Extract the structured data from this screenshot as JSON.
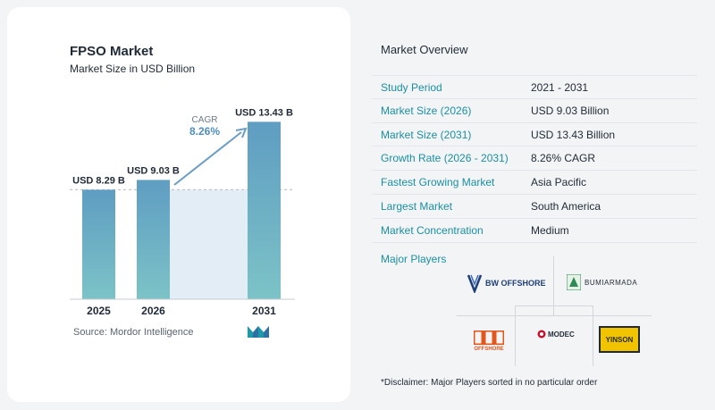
{
  "chart_data": {
    "type": "bar",
    "title": "FPSO Market",
    "subtitle": "Market Size in USD Billion",
    "categories": [
      "2025",
      "2026",
      "2031"
    ],
    "values": [
      8.29,
      9.03,
      13.43
    ],
    "data_labels": [
      "USD 8.29 B",
      "USD 9.03 B",
      "USD 13.43 B"
    ],
    "cagr_label": "CAGR",
    "cagr_value": "8.26%",
    "ylim": [
      0,
      14.2
    ],
    "grid": false,
    "colors": {
      "bar_top": "#5f9dc2",
      "bar_bottom": "#7cc3c7",
      "band": "#e3edf6",
      "arrow": "#6b9dc4"
    }
  },
  "source": "Source:  Mordor Intelligence",
  "overview": {
    "title": "Market Overview",
    "rows": [
      {
        "label": "Study Period",
        "value": "2021 - 2031"
      },
      {
        "label": "Market Size (2026)",
        "value": "USD 9.03 Billion"
      },
      {
        "label": "Market Size (2031)",
        "value": "USD 13.43 Billion"
      },
      {
        "label": "Growth Rate (2026 - 2031)",
        "value": "8.26% CAGR"
      },
      {
        "label": "Fastest Growing Market",
        "value": "Asia Pacific"
      },
      {
        "label": "Largest Market",
        "value": "South America"
      },
      {
        "label": "Market Concentration",
        "value": "Medium"
      }
    ]
  },
  "players": {
    "title": "Major Players",
    "logos": {
      "bw": "BW OFFSHORE",
      "bumi": "BUMIARMADA",
      "sbm": "OFFSHORE",
      "modec": "MODEC",
      "yinson": "YINSON"
    }
  },
  "disclaimer": "*Disclaimer: Major Players sorted in no particular order"
}
